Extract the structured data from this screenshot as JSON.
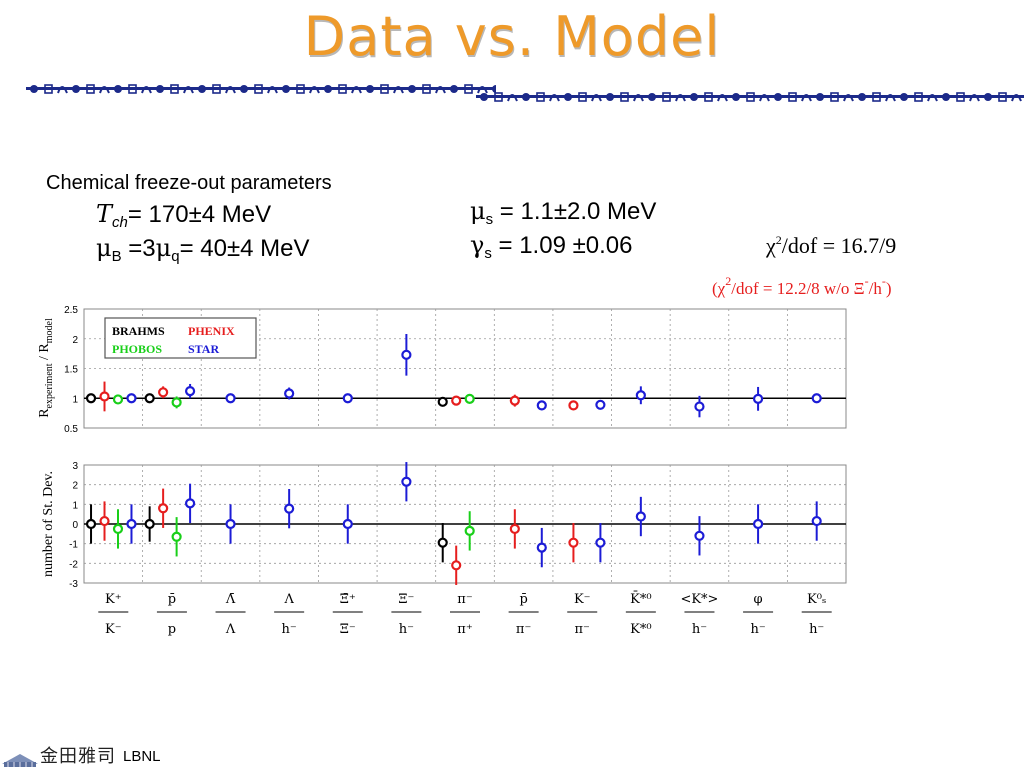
{
  "title": "Data vs. Model",
  "params": {
    "label": "Chemical freeze-out parameters",
    "tch_symbol": "T",
    "tch_sub": "ch",
    "tch_value": "= 170±4 MeV",
    "mub_symbol": "μ",
    "mub_sub": "B",
    "mub_mid": " =3",
    "mub_mid_symbol": "μ",
    "mub_mid_sub": "q",
    "mub_value": "= 40±4 MeV",
    "mus_symbol": "μ",
    "mus_sub": "s",
    "mus_value": "= 1.1±2.0 MeV",
    "gs_symbol": "γ",
    "gs_sub": "s",
    "gs_value": "= 1.09 ±0.06",
    "chi_symbol": "χ",
    "chi_sup": "2",
    "chi_value": "/dof = 16.7/9",
    "chi2_prefix": "(χ",
    "chi2_sup": "2",
    "chi2_value": "/dof = 12.2/8  w/o Ξ",
    "chi2_sup2": "-",
    "chi2_tail": "/h",
    "chi2_sup3": "-",
    "chi2_end": ")"
  },
  "footer": {
    "text": "LBNL",
    "cjk": "金田雅司"
  },
  "colors": {
    "title": "#ee9a2a",
    "band": "#1c2a8a",
    "BRAHMS": "#000000",
    "PHENIX": "#e61e1e",
    "PHOBOS": "#19cf19",
    "STAR": "#1c1cd6"
  },
  "chart_data": [
    {
      "type": "scatter",
      "panel": "ratio",
      "ylabel_main": "R",
      "ylabel_sub1": "experiment",
      "ylabel_mid": " / R",
      "ylabel_sub2": "model",
      "ylim": [
        0.5,
        2.5
      ],
      "yticks": [
        "0.5",
        "1",
        "1.5",
        "2",
        "2.5"
      ],
      "reference_line": 1,
      "grid": true,
      "legend": {
        "placement": "top-left",
        "entries": [
          {
            "name": "BRAHMS",
            "color": "#000000"
          },
          {
            "name": "PHENIX",
            "color": "#e61e1e"
          },
          {
            "name": "PHOBOS",
            "color": "#19cf19"
          },
          {
            "name": "STAR",
            "color": "#1c1cd6"
          }
        ]
      },
      "points": [
        {
          "cat": 0,
          "exp": "BRAHMS",
          "y": 1.0,
          "err": 0.05
        },
        {
          "cat": 0,
          "exp": "PHENIX",
          "y": 1.03,
          "err": 0.25
        },
        {
          "cat": 0,
          "exp": "PHOBOS",
          "y": 0.98,
          "err": 0.05
        },
        {
          "cat": 0,
          "exp": "STAR",
          "y": 1.0,
          "err": 0.05
        },
        {
          "cat": 1,
          "exp": "BRAHMS",
          "y": 1.0,
          "err": 0.06
        },
        {
          "cat": 1,
          "exp": "PHENIX",
          "y": 1.1,
          "err": 0.1
        },
        {
          "cat": 1,
          "exp": "PHOBOS",
          "y": 0.93,
          "err": 0.1
        },
        {
          "cat": 1,
          "exp": "STAR",
          "y": 1.12,
          "err": 0.12
        },
        {
          "cat": 2,
          "exp": "STAR",
          "y": 1.0,
          "err": 0.05
        },
        {
          "cat": 3,
          "exp": "STAR",
          "y": 1.08,
          "err": 0.1
        },
        {
          "cat": 4,
          "exp": "STAR",
          "y": 1.0,
          "err": 0.05
        },
        {
          "cat": 5,
          "exp": "STAR",
          "y": 1.73,
          "err": 0.35
        },
        {
          "cat": 6,
          "exp": "BRAHMS",
          "y": 0.94,
          "err": 0.05
        },
        {
          "cat": 6,
          "exp": "PHENIX",
          "y": 0.96,
          "err": 0.05
        },
        {
          "cat": 6,
          "exp": "PHOBOS",
          "y": 0.99,
          "err": 0.05
        },
        {
          "cat": 7,
          "exp": "PHENIX",
          "y": 0.96,
          "err": 0.1
        },
        {
          "cat": 7,
          "exp": "STAR",
          "y": 0.88,
          "err": 0.08
        },
        {
          "cat": 8,
          "exp": "PHENIX",
          "y": 0.88,
          "err": 0.08
        },
        {
          "cat": 8,
          "exp": "STAR",
          "y": 0.89,
          "err": 0.08
        },
        {
          "cat": 9,
          "exp": "STAR",
          "y": 1.05,
          "err": 0.15
        },
        {
          "cat": 10,
          "exp": "STAR",
          "y": 0.86,
          "err": 0.18
        },
        {
          "cat": 11,
          "exp": "STAR",
          "y": 0.99,
          "err": 0.2
        },
        {
          "cat": 12,
          "exp": "STAR",
          "y": 1.0,
          "err": 0.05
        }
      ]
    },
    {
      "type": "scatter",
      "panel": "deviation",
      "ylabel": "number of St. Dev.",
      "ylim": [
        -3,
        3
      ],
      "yticks": [
        "-3",
        "-2",
        "-1",
        "0",
        "1",
        "2",
        "3"
      ],
      "reference_line": 0,
      "grid": true,
      "points": [
        {
          "cat": 0,
          "exp": "BRAHMS",
          "y": 0.0,
          "err": 1.0
        },
        {
          "cat": 0,
          "exp": "PHENIX",
          "y": 0.15,
          "err": 1.0
        },
        {
          "cat": 0,
          "exp": "PHOBOS",
          "y": -0.25,
          "err": 1.0
        },
        {
          "cat": 0,
          "exp": "STAR",
          "y": 0.0,
          "err": 1.0
        },
        {
          "cat": 1,
          "exp": "BRAHMS",
          "y": 0.0,
          "err": 0.9
        },
        {
          "cat": 1,
          "exp": "PHENIX",
          "y": 0.8,
          "err": 1.0
        },
        {
          "cat": 1,
          "exp": "PHOBOS",
          "y": -0.65,
          "err": 1.0
        },
        {
          "cat": 1,
          "exp": "STAR",
          "y": 1.05,
          "err": 1.0
        },
        {
          "cat": 2,
          "exp": "STAR",
          "y": 0.0,
          "err": 1.0
        },
        {
          "cat": 3,
          "exp": "STAR",
          "y": 0.78,
          "err": 1.0
        },
        {
          "cat": 4,
          "exp": "STAR",
          "y": 0.0,
          "err": 1.0
        },
        {
          "cat": 5,
          "exp": "STAR",
          "y": 2.15,
          "err": 1.0
        },
        {
          "cat": 6,
          "exp": "BRAHMS",
          "y": -0.95,
          "err": 1.0
        },
        {
          "cat": 6,
          "exp": "PHENIX",
          "y": -2.1,
          "err": 1.0
        },
        {
          "cat": 6,
          "exp": "PHOBOS",
          "y": -0.35,
          "err": 1.0
        },
        {
          "cat": 7,
          "exp": "PHENIX",
          "y": -0.25,
          "err": 1.0
        },
        {
          "cat": 7,
          "exp": "STAR",
          "y": -1.2,
          "err": 1.0
        },
        {
          "cat": 8,
          "exp": "PHENIX",
          "y": -0.95,
          "err": 1.0
        },
        {
          "cat": 8,
          "exp": "STAR",
          "y": -0.95,
          "err": 1.0
        },
        {
          "cat": 9,
          "exp": "STAR",
          "y": 0.38,
          "err": 1.0
        },
        {
          "cat": 10,
          "exp": "STAR",
          "y": -0.6,
          "err": 1.0
        },
        {
          "cat": 11,
          "exp": "STAR",
          "y": 0.0,
          "err": 1.0
        },
        {
          "cat": 12,
          "exp": "STAR",
          "y": 0.15,
          "err": 1.0
        }
      ]
    }
  ],
  "x_categories": [
    {
      "num": "K⁺",
      "den": "K⁻"
    },
    {
      "num": "p̄",
      "den": "p"
    },
    {
      "num": "Λ̄",
      "den": "Λ"
    },
    {
      "num": "Λ",
      "den": "h⁻"
    },
    {
      "num": "Ξ̄⁺",
      "den": "Ξ⁻"
    },
    {
      "num": "Ξ⁻",
      "den": "h⁻"
    },
    {
      "num": "π⁻",
      "den": "π⁺"
    },
    {
      "num": "p̄",
      "den": "π⁻"
    },
    {
      "num": "K⁻",
      "den": "π⁻"
    },
    {
      "num": "K̄*⁰",
      "den": "K*⁰"
    },
    {
      "num": "<K*>",
      "den": "h⁻"
    },
    {
      "num": "φ",
      "den": "h⁻"
    },
    {
      "num": "K⁰ₛ",
      "den": "h⁻"
    }
  ]
}
